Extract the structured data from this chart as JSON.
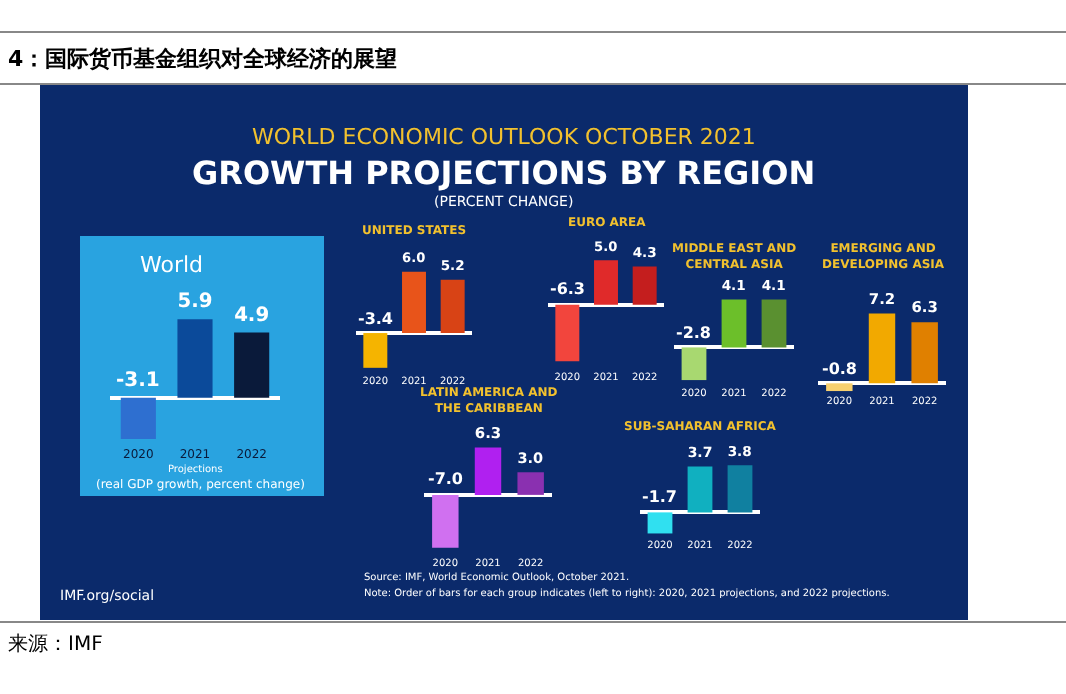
{
  "chart_data": [
    {
      "type": "other",
      "title": "4：国际货币基金组织对全球经济的展望",
      "annotations": [
        "WORLD ECONOMIC OUTLOOK OCTOBER 2021",
        "GROWTH PROJECTIONS BY REGION",
        "(PERCENT CHANGE)",
        "IMF.org/social",
        "Source: IMF, World Economic Outlook, October 2021.",
        "Note: Order of bars for each group indicates (left to right): 2020, 2021 projections, and 2022 projections.",
        "来源：IMF"
      ]
    },
    {
      "type": "bar",
      "title": "World",
      "categories": [
        "2020",
        "2021",
        "2022"
      ],
      "values": [
        -3.1,
        5.9,
        4.9
      ],
      "colors": [
        "#2e6fd0",
        "#0b4a9a",
        "#0a1a3a"
      ],
      "data_labels": true,
      "annotations": [
        "Projections",
        "(real GDP growth, percent change)"
      ]
    },
    {
      "type": "bar",
      "title": "UNITED STATES",
      "categories": [
        "2020",
        "2021",
        "2022"
      ],
      "values": [
        -3.4,
        6.0,
        5.2
      ],
      "colors": [
        "#f5b400",
        "#e8541a",
        "#d84315"
      ],
      "value_labels": [
        "-3.4",
        "6.0",
        "5.2"
      ]
    },
    {
      "type": "bar",
      "title": "EURO AREA",
      "categories": [
        "2020",
        "2021",
        "2022"
      ],
      "values": [
        -6.3,
        5.0,
        4.3
      ],
      "colors": [
        "#f2453d",
        "#e02a2a",
        "#c41e1e"
      ],
      "value_labels": [
        "-6.3",
        "5.0",
        "4.3"
      ]
    },
    {
      "type": "bar",
      "title": "MIDDLE EAST AND\nCENTRAL ASIA",
      "categories": [
        "2020",
        "2021",
        "2022"
      ],
      "values": [
        -2.8,
        4.1,
        4.1
      ],
      "colors": [
        "#a8d870",
        "#6cbf2a",
        "#5a9030"
      ],
      "data_labels": true
    },
    {
      "type": "bar",
      "title": "EMERGING AND\nDEVELOPING ASIA",
      "categories": [
        "2020",
        "2021",
        "2022"
      ],
      "values": [
        -0.8,
        7.2,
        6.3
      ],
      "colors": [
        "#f7d070",
        "#f2a900",
        "#e08000"
      ],
      "data_labels": true
    },
    {
      "type": "bar",
      "title": "LATIN AMERICA AND\nTHE CARIBBEAN",
      "categories": [
        "2020",
        "2021",
        "2022"
      ],
      "values": [
        -7.0,
        6.3,
        3.0
      ],
      "colors": [
        "#d070f0",
        "#b020f0",
        "#8a30b0"
      ],
      "value_labels": [
        "-7.0",
        "6.3",
        "3.0"
      ]
    },
    {
      "type": "bar",
      "title": "SUB-SAHARAN AFRICA",
      "categories": [
        "2020",
        "2021",
        "2022"
      ],
      "values": [
        -1.7,
        3.7,
        3.8
      ],
      "colors": [
        "#30e0f0",
        "#10b0c0",
        "#1080a0"
      ],
      "data_labels": true
    }
  ]
}
